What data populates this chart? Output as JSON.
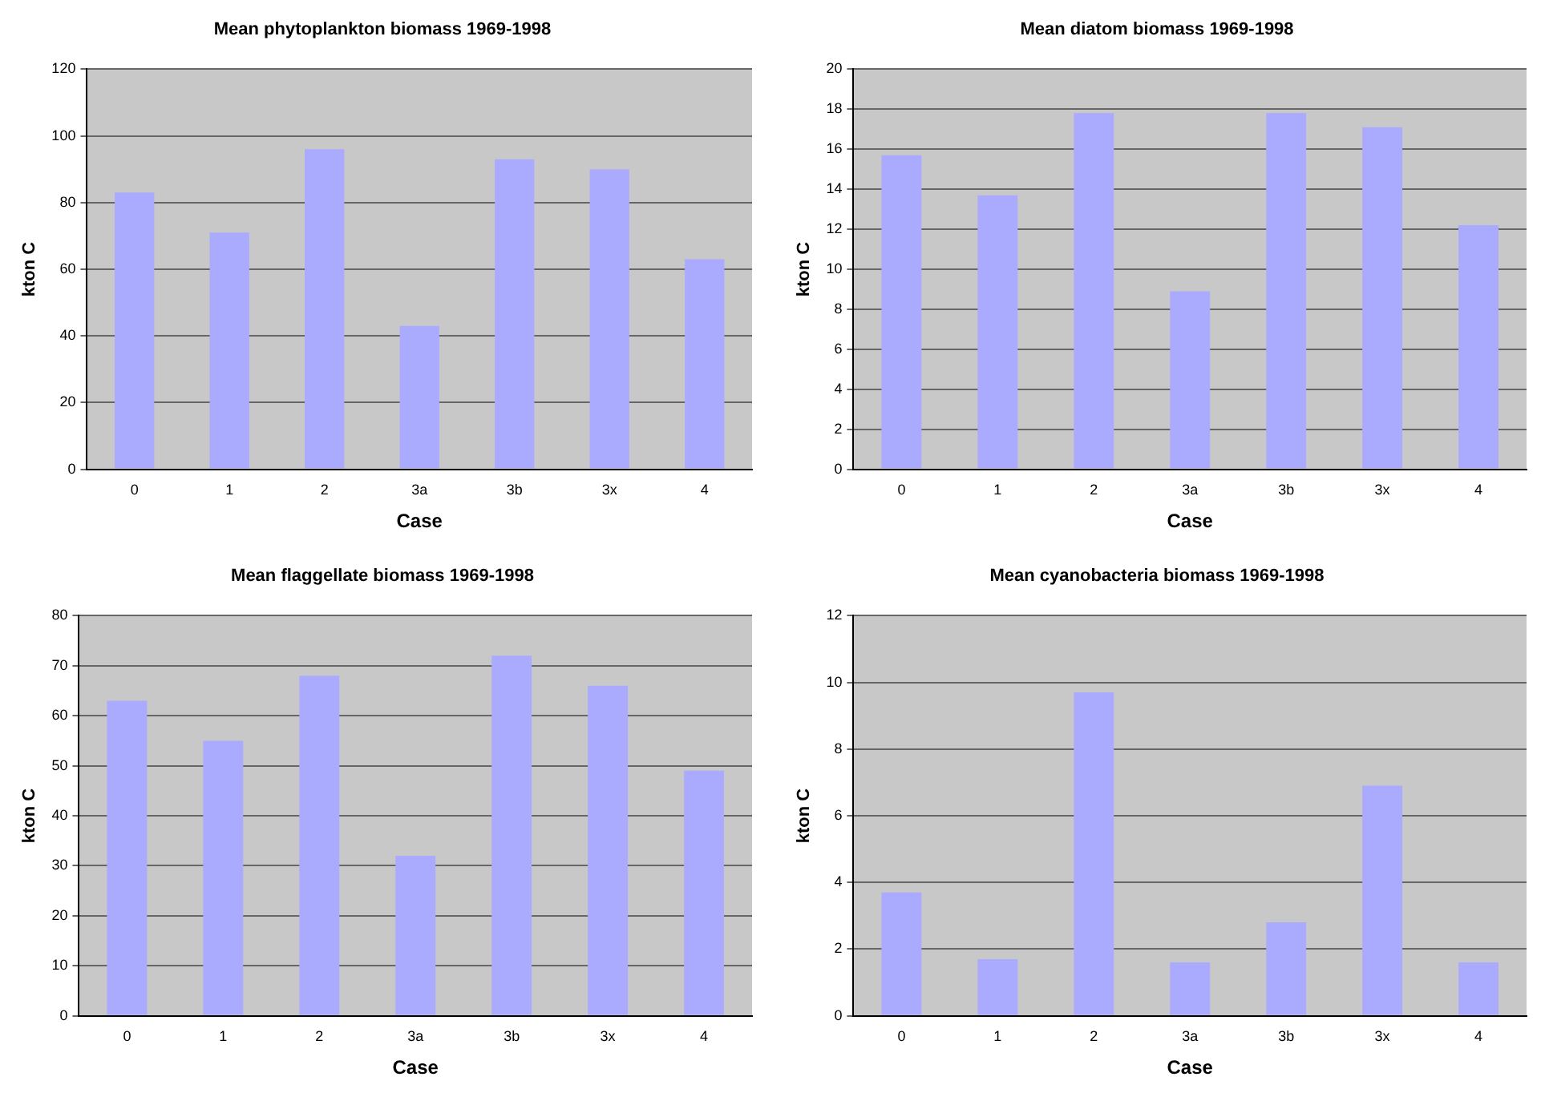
{
  "chart_data": [
    {
      "type": "bar",
      "title": "Mean phytoplankton biomass 1969-1998",
      "xlabel": "Case",
      "ylabel": "kton C",
      "categories": [
        "0",
        "1",
        "2",
        "3a",
        "3b",
        "3x",
        "4"
      ],
      "values": [
        83,
        71,
        96,
        43,
        93,
        90,
        63
      ],
      "color": "#aaaaff",
      "ylim": [
        0,
        120
      ],
      "yticks": [
        0,
        20,
        40,
        60,
        80,
        100,
        120
      ],
      "grid": "y"
    },
    {
      "type": "bar",
      "title": "Mean diatom biomass 1969-1998",
      "xlabel": "Case",
      "ylabel": "kton C",
      "categories": [
        "0",
        "1",
        "2",
        "3a",
        "3b",
        "3x",
        "4"
      ],
      "values": [
        15.7,
        13.7,
        17.8,
        8.9,
        17.8,
        17.1,
        12.2
      ],
      "color": "#aaaaff",
      "ylim": [
        0,
        20
      ],
      "yticks": [
        0,
        2,
        4,
        6,
        8,
        10,
        12,
        14,
        16,
        18,
        20
      ],
      "grid": "y"
    },
    {
      "type": "bar",
      "title": "Mean flaggellate biomass 1969-1998",
      "xlabel": "Case",
      "ylabel": "kton C",
      "categories": [
        "0",
        "1",
        "2",
        "3a",
        "3b",
        "3x",
        "4"
      ],
      "values": [
        63,
        55,
        68,
        32,
        72,
        66,
        49
      ],
      "color": "#aaaaff",
      "ylim": [
        0,
        80
      ],
      "yticks": [
        0,
        10,
        20,
        30,
        40,
        50,
        60,
        70,
        80
      ],
      "grid": "y"
    },
    {
      "type": "bar",
      "title": "Mean cyanobacteria biomass 1969-1998",
      "xlabel": "Case",
      "ylabel": "kton C",
      "categories": [
        "0",
        "1",
        "2",
        "3a",
        "3b",
        "3x",
        "4"
      ],
      "values": [
        3.7,
        1.7,
        9.7,
        1.6,
        2.8,
        6.9,
        1.6
      ],
      "color": "#aaaaff",
      "ylim": [
        0,
        12
      ],
      "yticks": [
        0,
        2,
        4,
        6,
        8,
        10,
        12
      ],
      "grid": "y"
    }
  ]
}
